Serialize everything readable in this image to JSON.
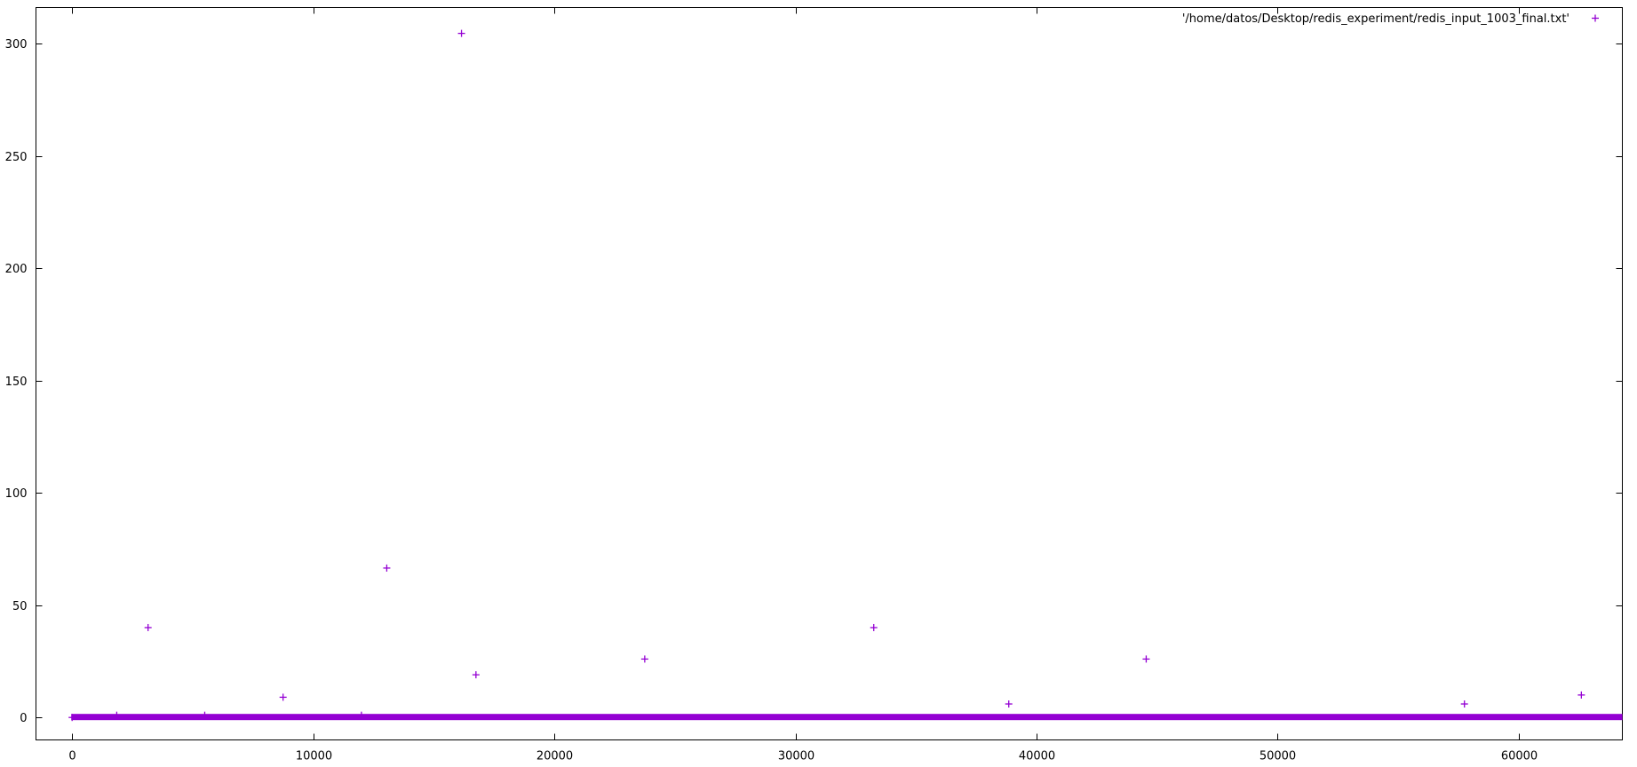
{
  "chart_data": {
    "type": "scatter",
    "title": "",
    "xlabel": "",
    "ylabel": "",
    "xlim": [
      -1500,
      64300
    ],
    "ylim": [
      -10,
      316
    ],
    "x_ticks": [
      0,
      10000,
      20000,
      30000,
      40000,
      50000,
      60000
    ],
    "y_ticks": [
      0,
      50,
      100,
      150,
      200,
      250,
      300
    ],
    "x_tick_labels": [
      "0",
      "10000",
      "20000",
      "30000",
      "40000",
      "50000",
      "60000"
    ],
    "y_tick_labels": [
      "0",
      "50",
      "100",
      "150",
      "200",
      "250",
      "300"
    ],
    "grid": false,
    "legend_position": "top-right",
    "series": [
      {
        "name": "'/home/datos/Desktop/redis_experiment/redis_input_1003_final.txt'",
        "color": "#9400d3",
        "marker": "plus",
        "baseline": {
          "x_range": [
            0,
            64300
          ],
          "y": 0
        },
        "points": [
          {
            "x": 3150,
            "y": 40
          },
          {
            "x": 8750,
            "y": 9
          },
          {
            "x": 13050,
            "y": 66.5
          },
          {
            "x": 16150,
            "y": 304.5
          },
          {
            "x": 16750,
            "y": 19
          },
          {
            "x": 23750,
            "y": 26
          },
          {
            "x": 33250,
            "y": 40
          },
          {
            "x": 38850,
            "y": 6
          },
          {
            "x": 44550,
            "y": 26
          },
          {
            "x": 57750,
            "y": 6
          },
          {
            "x": 62600,
            "y": 10
          }
        ],
        "low_points": [
          {
            "x": 1850,
            "y": 1
          },
          {
            "x": 5500,
            "y": 1
          },
          {
            "x": 12000,
            "y": 1
          }
        ]
      }
    ]
  }
}
